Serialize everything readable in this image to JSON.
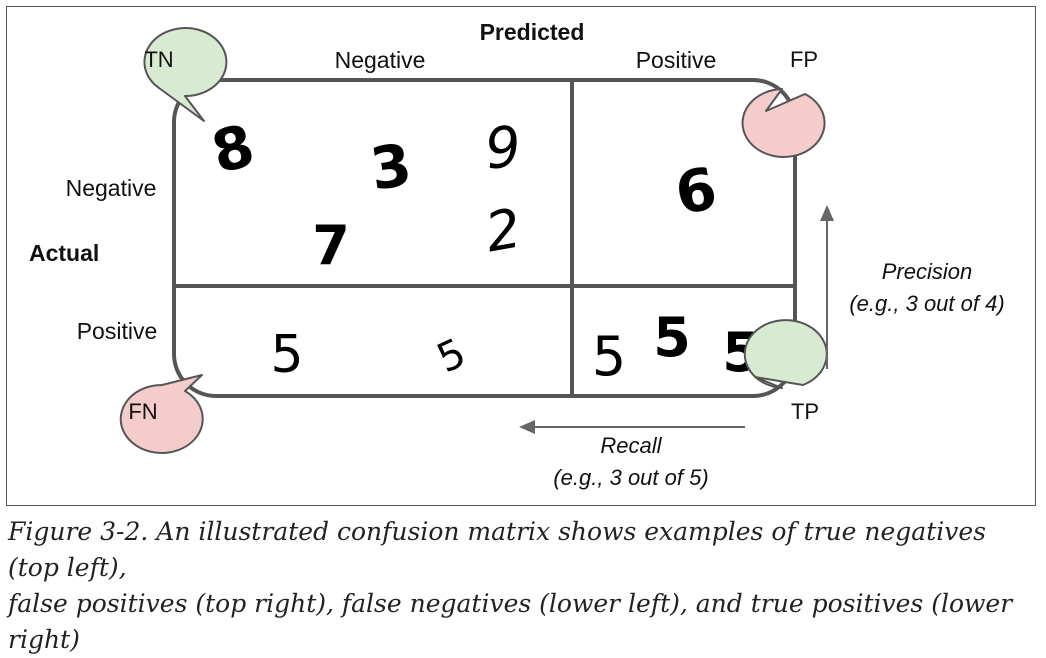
{
  "matrix": {
    "predicted_label": "Predicted",
    "actual_label": "Actual",
    "columns": [
      "Negative",
      "Positive"
    ],
    "rows": [
      "Negative",
      "Positive"
    ]
  },
  "cells": {
    "tn_digits": [
      "8",
      "3",
      "9",
      "7",
      "2"
    ],
    "fp_digits": [
      "6"
    ],
    "fn_digits": [
      "5",
      "5"
    ],
    "tp_digits": [
      "5",
      "5",
      "5"
    ]
  },
  "bubbles": {
    "tn": {
      "label": "TN",
      "color": "#d9ead3"
    },
    "fp": {
      "label": "FP",
      "color": "#f4cccc"
    },
    "fn": {
      "label": "FN",
      "color": "#f4cccc"
    },
    "tp": {
      "label": "TP",
      "color": "#d9ead3"
    }
  },
  "annotations": {
    "precision_title": "Precision",
    "precision_example": "(e.g., 3 out of 4)",
    "recall_title": "Recall",
    "recall_example": "(e.g., 3 out of 5)"
  },
  "caption": {
    "line1": "Figure 3-2. An illustrated confusion matrix shows examples of true negatives (top left),",
    "line2": "false positives (top right), false negatives (lower left), and true positives (lower right)"
  }
}
